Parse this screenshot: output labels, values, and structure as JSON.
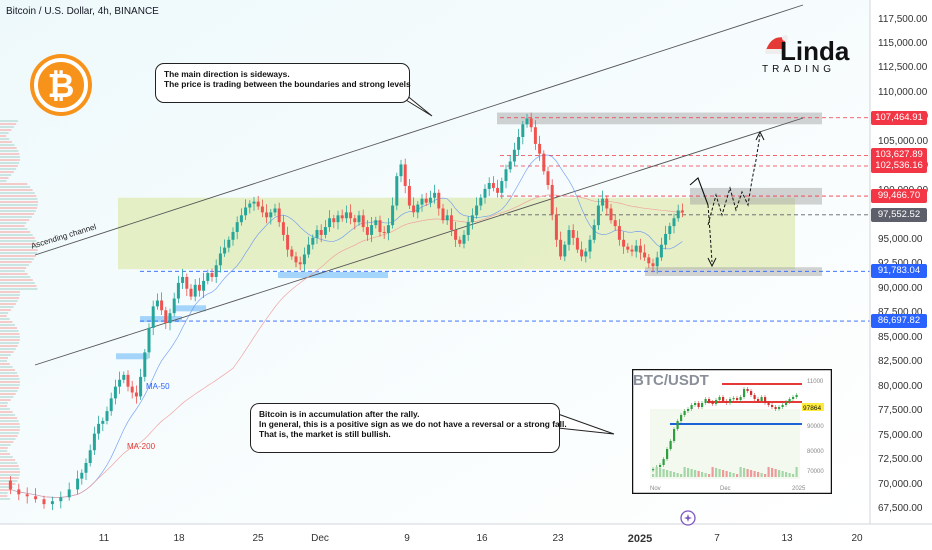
{
  "header": {
    "title": "Bitcoin / U.S. Dollar, 4h, BINANCE"
  },
  "brand": {
    "name_top": "Linda",
    "name_bottom": "TRADING",
    "logo_symbol": "₿"
  },
  "callouts": {
    "top": {
      "line1": "The main direction is sideways.",
      "line2": "The price is trading between the boundaries and strong levels"
    },
    "bottom": {
      "line1": "Bitcoin is in accumulation after the rally.",
      "line2": "In general, this is a positive sign as we do not have a reversal or a strong fall.",
      "line3": "That is, the market is still bullish."
    }
  },
  "annotations": {
    "channel": "Ascending channel",
    "ma50": "MA-50",
    "ma200": "MA-200"
  },
  "inset": {
    "title": "BTC/USDT",
    "price_tag": "97864",
    "y_ticks": [
      "11000",
      "90000",
      "80000",
      "70000"
    ],
    "x_ticks": [
      "Nov",
      "Dec",
      "2025"
    ]
  },
  "colors": {
    "up": "#26a69a",
    "down": "#ef5350",
    "red_tag": "#f23645",
    "blue_tag": "#2962ff",
    "gray_tag": "#5d606b",
    "zone": "#dbe8a8",
    "btc_logo": "#f7931a"
  },
  "chart_data": {
    "type": "candlestick",
    "title": "Bitcoin / U.S. Dollar, 4h, BINANCE",
    "y_axis": {
      "ticks": [
        "117,500.00",
        "115,000.00",
        "112,500.00",
        "110,000.00",
        "107,500.00",
        "105,000.00",
        "102,500.00",
        "100,000.00",
        "97,500.00",
        "95,000.00",
        "92,500.00",
        "90,000.00",
        "87,500.00",
        "85,000.00",
        "82,500.00",
        "80,000.00",
        "77,500.00",
        "75,000.00",
        "72,500.00",
        "70,000.00",
        "67,500.00"
      ],
      "range": [
        66500,
        118500
      ]
    },
    "x_axis": {
      "ticks": [
        "11",
        "18",
        "25",
        "Dec",
        "9",
        "16",
        "23",
        "2025",
        "7",
        "13",
        "20"
      ]
    },
    "price_levels": [
      {
        "value": "107,464.91",
        "color": "red"
      },
      {
        "value": "103,627.89",
        "color": "red"
      },
      {
        "value": "102,536.16",
        "color": "red"
      },
      {
        "value": "99,466.70",
        "color": "red"
      },
      {
        "value": "97,552.52",
        "color": "gray"
      },
      {
        "value": "91,783.04",
        "color": "blue"
      },
      {
        "value": "86,697.82",
        "color": "blue"
      }
    ],
    "path": [
      [
        2,
        70400
      ],
      [
        4,
        69500
      ],
      [
        6,
        69000
      ],
      [
        8,
        68800
      ],
      [
        10,
        68500
      ],
      [
        12,
        68000
      ],
      [
        14,
        68300
      ],
      [
        16,
        68700
      ],
      [
        18,
        69500
      ],
      [
        20,
        70600
      ],
      [
        21,
        71200
      ],
      [
        22,
        72200
      ],
      [
        23,
        73500
      ],
      [
        24,
        75200
      ],
      [
        25,
        76200
      ],
      [
        26,
        76500
      ],
      [
        27,
        77500
      ],
      [
        28,
        78800
      ],
      [
        29,
        80000
      ],
      [
        30,
        80700
      ],
      [
        31,
        81200
      ],
      [
        32,
        80000
      ],
      [
        33,
        79400
      ],
      [
        34,
        79000
      ],
      [
        35,
        81000
      ],
      [
        36,
        83500
      ],
      [
        37,
        86000
      ],
      [
        38,
        88200
      ],
      [
        39,
        88800
      ],
      [
        40,
        87800
      ],
      [
        41,
        86500
      ],
      [
        42,
        87500
      ],
      [
        43,
        89000
      ],
      [
        44,
        90600
      ],
      [
        45,
        91200
      ],
      [
        46,
        90000
      ],
      [
        47,
        89200
      ],
      [
        48,
        90400
      ],
      [
        49,
        89800
      ],
      [
        50,
        90800
      ],
      [
        51,
        91600
      ],
      [
        52,
        91200
      ],
      [
        53,
        92400
      ],
      [
        54,
        93600
      ],
      [
        55,
        94200
      ],
      [
        56,
        95000
      ],
      [
        57,
        95800
      ],
      [
        58,
        96800
      ],
      [
        59,
        97500
      ],
      [
        60,
        98300
      ],
      [
        61,
        98700
      ],
      [
        62,
        98900
      ],
      [
        63,
        98400
      ],
      [
        64,
        97800
      ],
      [
        65,
        97300
      ],
      [
        66,
        97800
      ],
      [
        67,
        98200
      ],
      [
        68,
        96800
      ],
      [
        69,
        95500
      ],
      [
        70,
        94000
      ],
      [
        71,
        93300
      ],
      [
        72,
        92700
      ],
      [
        73,
        92500
      ],
      [
        74,
        93500
      ],
      [
        75,
        94500
      ],
      [
        76,
        95200
      ],
      [
        77,
        96000
      ],
      [
        78,
        95500
      ],
      [
        79,
        96300
      ],
      [
        80,
        97200
      ],
      [
        81,
        96800
      ],
      [
        82,
        97500
      ],
      [
        83,
        97200
      ],
      [
        84,
        97800
      ],
      [
        85,
        97200
      ],
      [
        86,
        96800
      ],
      [
        87,
        97500
      ],
      [
        88,
        96300
      ],
      [
        89,
        95500
      ],
      [
        90,
        96500
      ],
      [
        91,
        97000
      ],
      [
        92,
        95800
      ],
      [
        93,
        95700
      ],
      [
        94,
        96500
      ],
      [
        95,
        98500
      ],
      [
        96,
        101500
      ],
      [
        97,
        102700
      ],
      [
        98,
        100500
      ],
      [
        99,
        98500
      ],
      [
        100,
        97800
      ],
      [
        101,
        98600
      ],
      [
        102,
        99200
      ],
      [
        103,
        98800
      ],
      [
        104,
        99300
      ],
      [
        105,
        99800
      ],
      [
        106,
        98200
      ],
      [
        107,
        97000
      ],
      [
        108,
        97500
      ],
      [
        109,
        96000
      ],
      [
        110,
        95000
      ],
      [
        111,
        94600
      ],
      [
        112,
        95500
      ],
      [
        113,
        96800
      ],
      [
        114,
        97500
      ],
      [
        115,
        98500
      ],
      [
        116,
        99300
      ],
      [
        117,
        100200
      ],
      [
        118,
        100800
      ],
      [
        119,
        100300
      ],
      [
        120,
        99800
      ],
      [
        121,
        101000
      ],
      [
        122,
        102200
      ],
      [
        123,
        103000
      ],
      [
        124,
        104200
      ],
      [
        125,
        105500
      ],
      [
        126,
        106800
      ],
      [
        127,
        107400
      ],
      [
        128,
        106500
      ],
      [
        129,
        104800
      ],
      [
        130,
        103800
      ],
      [
        131,
        102000
      ],
      [
        132,
        100600
      ],
      [
        133,
        97600
      ],
      [
        134,
        95000
      ],
      [
        135,
        93300
      ],
      [
        136,
        94500
      ],
      [
        137,
        96000
      ],
      [
        138,
        95200
      ],
      [
        139,
        94000
      ],
      [
        140,
        93300
      ],
      [
        141,
        93800
      ],
      [
        142,
        95000
      ],
      [
        143,
        96500
      ],
      [
        144,
        98500
      ],
      [
        145,
        99200
      ],
      [
        146,
        98200
      ],
      [
        147,
        97000
      ],
      [
        148,
        96400
      ],
      [
        149,
        95000
      ],
      [
        150,
        94300
      ],
      [
        151,
        94000
      ],
      [
        152,
        93800
      ],
      [
        153,
        94400
      ],
      [
        154,
        93700
      ],
      [
        155,
        93200
      ],
      [
        156,
        92600
      ],
      [
        157,
        92300
      ],
      [
        158,
        93200
      ],
      [
        159,
        94500
      ],
      [
        160,
        95600
      ],
      [
        161,
        96400
      ],
      [
        162,
        97200
      ],
      [
        163,
        98000
      ],
      [
        164,
        97800
      ]
    ],
    "forecast": {
      "type": "dashed arrows",
      "targets": [
        "91,783.04",
        "105,000.00"
      ]
    }
  }
}
